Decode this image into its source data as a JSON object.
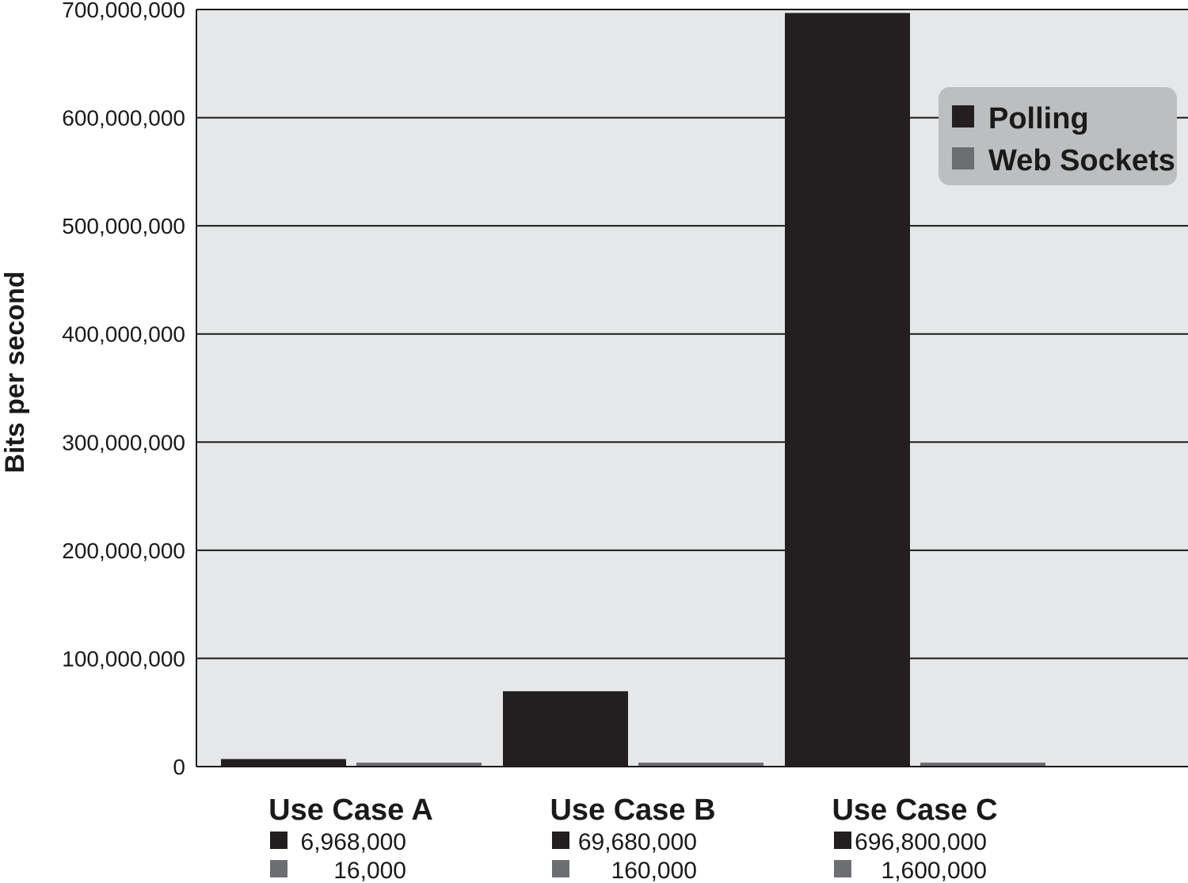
{
  "chart_data": {
    "type": "bar",
    "title": "",
    "xlabel": "",
    "ylabel": "Bits per second",
    "ylim": [
      0,
      700000000
    ],
    "yticks": [
      0,
      100000000,
      200000000,
      300000000,
      400000000,
      500000000,
      600000000,
      700000000
    ],
    "ytick_labels": [
      "0",
      "100,000,000",
      "200,000,000",
      "300,000,000",
      "400,000,000",
      "500,000,000",
      "600,000,000",
      "700,000,000"
    ],
    "categories": [
      "Use Case A",
      "Use Case B",
      "Use Case C"
    ],
    "series": [
      {
        "name": "Polling",
        "color": "#231f20",
        "values": [
          6968000,
          69680000,
          696800000
        ],
        "value_labels": [
          "6,968,000",
          "69,680,000",
          "696,800,000"
        ]
      },
      {
        "name": "Web Sockets",
        "color": "#6d6e71",
        "values": [
          16000,
          160000,
          1600000
        ],
        "value_labels": [
          "16,000",
          "160,000",
          "1,600,000"
        ]
      }
    ],
    "grid": true,
    "legend_position": "top-right",
    "colors": {
      "plot_background": "#e6e7e8",
      "legend_background": "#bcbec0",
      "gridline": "#1a1a1a"
    }
  }
}
